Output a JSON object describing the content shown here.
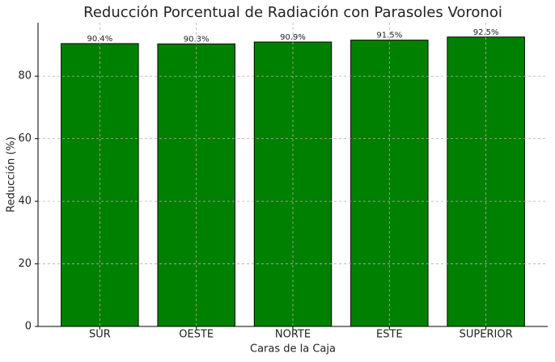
{
  "chart_data": {
    "type": "bar",
    "title": "Reducción Porcentual de Radiación con Parasoles Voronoi",
    "x_label": "Caras de la Caja",
    "y_label": "Reducción (%)",
    "categories": [
      "SUR",
      "OESTE",
      "NORTE",
      "ESTE",
      "SUPERIOR"
    ],
    "values": [
      90.4,
      90.3,
      90.9,
      91.5,
      92.5
    ],
    "value_labels": [
      "90.4%",
      "90.3%",
      "90.9%",
      "91.5%",
      "92.5%"
    ],
    "color": "#008000",
    "edge_color": "#000000",
    "ylim": [
      0,
      97.1
    ],
    "yticks": [
      0,
      20,
      40,
      60,
      80
    ],
    "grid": true
  }
}
